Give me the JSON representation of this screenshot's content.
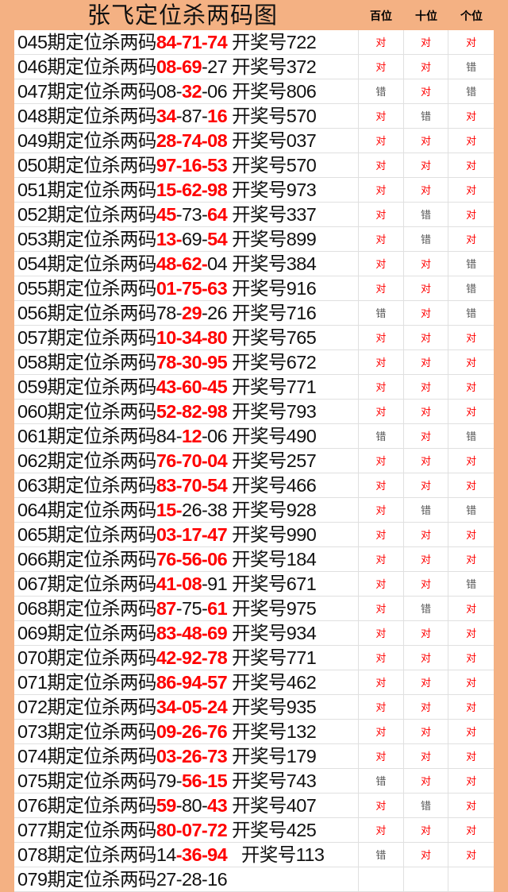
{
  "title": "张飞定位杀两码图",
  "columns": [
    "百位",
    "十位",
    "个位"
  ],
  "colors": {
    "background": "#f4b183",
    "highlight": "#ff0000",
    "correct": "#ff0000",
    "wrong": "#555555"
  },
  "row_label": "期定位杀两码",
  "draw_label": "开奖号",
  "rows": [
    {
      "period": "045",
      "code": [
        [
          "84-71-74",
          1
        ]
      ],
      "draw": "722",
      "results": [
        "对",
        "对",
        "对"
      ]
    },
    {
      "period": "046",
      "code": [
        [
          "08-69",
          1
        ],
        [
          "-27",
          0
        ]
      ],
      "draw": "372",
      "results": [
        "对",
        "对",
        "错"
      ]
    },
    {
      "period": "047",
      "code": [
        [
          "08-",
          0
        ],
        [
          "32",
          1
        ],
        [
          "-06",
          0
        ]
      ],
      "draw": "806",
      "results": [
        "错",
        "对",
        "错"
      ]
    },
    {
      "period": "048",
      "code": [
        [
          "34",
          1
        ],
        [
          "-87-",
          0
        ],
        [
          "16",
          1
        ]
      ],
      "draw": "570",
      "results": [
        "对",
        "错",
        "对"
      ]
    },
    {
      "period": "049",
      "code": [
        [
          "28-74-08",
          1
        ]
      ],
      "draw": "037",
      "results": [
        "对",
        "对",
        "对"
      ]
    },
    {
      "period": "050",
      "code": [
        [
          "97-16-53",
          1
        ]
      ],
      "draw": "570",
      "results": [
        "对",
        "对",
        "对"
      ]
    },
    {
      "period": "051",
      "code": [
        [
          "15-62-98",
          1
        ]
      ],
      "draw": "973",
      "results": [
        "对",
        "对",
        "对"
      ]
    },
    {
      "period": "052",
      "code": [
        [
          "45",
          1
        ],
        [
          "-73-",
          0
        ],
        [
          "64",
          1
        ]
      ],
      "draw": "337",
      "results": [
        "对",
        "错",
        "对"
      ]
    },
    {
      "period": "053",
      "code": [
        [
          "13-",
          1
        ],
        [
          "69-",
          0
        ],
        [
          "54",
          1
        ]
      ],
      "draw": "899",
      "results": [
        "对",
        "错",
        "对"
      ]
    },
    {
      "period": "054",
      "code": [
        [
          "48-62-",
          1
        ],
        [
          "04",
          0
        ]
      ],
      "draw": "384",
      "results": [
        "对",
        "对",
        "错"
      ]
    },
    {
      "period": "055",
      "code": [
        [
          "01-75-63",
          1
        ]
      ],
      "draw": "916",
      "results": [
        "对",
        "对",
        "错"
      ]
    },
    {
      "period": "056",
      "code": [
        [
          "78-",
          0
        ],
        [
          "29",
          1
        ],
        [
          "-26",
          0
        ]
      ],
      "draw": "716",
      "results": [
        "错",
        "对",
        "错"
      ]
    },
    {
      "period": "057",
      "code": [
        [
          "10-34-80",
          1
        ]
      ],
      "draw": "765",
      "results": [
        "对",
        "对",
        "对"
      ]
    },
    {
      "period": "058",
      "code": [
        [
          "78-30-95",
          1
        ]
      ],
      "draw": "672",
      "results": [
        "对",
        "对",
        "对"
      ]
    },
    {
      "period": "059",
      "code": [
        [
          "43-60-45",
          1
        ]
      ],
      "draw": "771",
      "results": [
        "对",
        "对",
        "对"
      ]
    },
    {
      "period": "060",
      "code": [
        [
          "52-82-98",
          1
        ]
      ],
      "draw": "793",
      "results": [
        "对",
        "对",
        "对"
      ]
    },
    {
      "period": "061",
      "code": [
        [
          "84-",
          0
        ],
        [
          "12",
          1
        ],
        [
          "-06",
          0
        ]
      ],
      "draw": "490",
      "results": [
        "错",
        "对",
        "错"
      ]
    },
    {
      "period": "062",
      "code": [
        [
          "76-70-04",
          1
        ]
      ],
      "draw": "257",
      "results": [
        "对",
        "对",
        "对"
      ]
    },
    {
      "period": "063",
      "code": [
        [
          "83-70-54",
          1
        ]
      ],
      "draw": "466",
      "results": [
        "对",
        "对",
        "对"
      ]
    },
    {
      "period": "064",
      "code": [
        [
          "15-",
          1
        ],
        [
          "26-38",
          0
        ]
      ],
      "draw": "928",
      "results": [
        "对",
        "错",
        "错"
      ]
    },
    {
      "period": "065",
      "code": [
        [
          "03-17-47",
          1
        ]
      ],
      "draw": "990",
      "results": [
        "对",
        "对",
        "对"
      ]
    },
    {
      "period": "066",
      "code": [
        [
          "76-56-06",
          1
        ]
      ],
      "draw": "184",
      "results": [
        "对",
        "对",
        "对"
      ]
    },
    {
      "period": "067",
      "code": [
        [
          "41-08",
          1
        ],
        [
          "-91",
          0
        ]
      ],
      "draw": "671",
      "results": [
        "对",
        "对",
        "错"
      ]
    },
    {
      "period": "068",
      "code": [
        [
          "87",
          1
        ],
        [
          "-75-",
          0
        ],
        [
          "61",
          1
        ]
      ],
      "draw": "975",
      "results": [
        "对",
        "错",
        "对"
      ]
    },
    {
      "period": "069",
      "code": [
        [
          "83-48-69",
          1
        ]
      ],
      "draw": "934",
      "results": [
        "对",
        "对",
        "对"
      ]
    },
    {
      "period": "070",
      "code": [
        [
          "42-92-78",
          1
        ]
      ],
      "draw": "771",
      "results": [
        "对",
        "对",
        "对"
      ]
    },
    {
      "period": "071",
      "code": [
        [
          "86-94-57",
          1
        ]
      ],
      "draw": "462",
      "results": [
        "对",
        "对",
        "对"
      ]
    },
    {
      "period": "072",
      "code": [
        [
          "34-05-24",
          1
        ]
      ],
      "draw": "935",
      "results": [
        "对",
        "对",
        "对"
      ]
    },
    {
      "period": "073",
      "code": [
        [
          "09-26-76",
          1
        ]
      ],
      "draw": "132",
      "results": [
        "对",
        "对",
        "对"
      ]
    },
    {
      "period": "074",
      "code": [
        [
          "03-26-73",
          1
        ]
      ],
      "draw": "179",
      "results": [
        "对",
        "对",
        "对"
      ]
    },
    {
      "period": "075",
      "code": [
        [
          "79-",
          0
        ],
        [
          "56-15",
          1
        ]
      ],
      "draw": "743",
      "results": [
        "错",
        "对",
        "对"
      ]
    },
    {
      "period": "076",
      "code": [
        [
          "59",
          1
        ],
        [
          "-80-",
          0
        ],
        [
          "43",
          1
        ]
      ],
      "draw": "407",
      "results": [
        "对",
        "错",
        "对"
      ]
    },
    {
      "period": "077",
      "code": [
        [
          "80-07-72",
          1
        ]
      ],
      "draw": "425",
      "results": [
        "对",
        "对",
        "对"
      ]
    },
    {
      "period": "078",
      "code": [
        [
          "14",
          0
        ],
        [
          "-36-94",
          1
        ]
      ],
      "draw": "113",
      "results": [
        "错",
        "对",
        "对"
      ]
    },
    {
      "period": "079",
      "code": [
        [
          "27-28-16",
          0
        ]
      ],
      "draw": "",
      "results": [
        "",
        "",
        ""
      ]
    }
  ]
}
